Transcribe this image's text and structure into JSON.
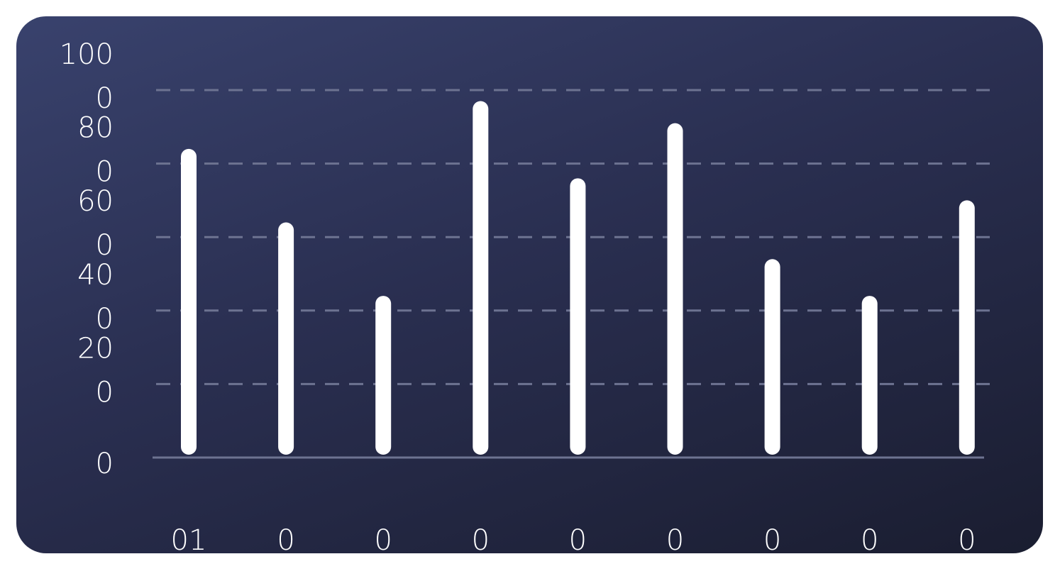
{
  "chart_data": {
    "type": "bar",
    "title": "",
    "xlabel": "",
    "ylabel": "",
    "ylim": [
      0,
      1000
    ],
    "grid": true,
    "yticks": [
      {
        "value": 1000,
        "lines": [
          "100",
          "0"
        ]
      },
      {
        "value": 800,
        "lines": [
          "80",
          "0"
        ]
      },
      {
        "value": 600,
        "lines": [
          "60",
          "0"
        ]
      },
      {
        "value": 400,
        "lines": [
          "40",
          "0"
        ]
      },
      {
        "value": 200,
        "lines": [
          "20",
          "0"
        ]
      },
      {
        "value": 0,
        "lines": [
          "0"
        ]
      }
    ],
    "categories": [
      "01",
      "0",
      "0",
      "0",
      "0",
      "0",
      "0",
      "0",
      "0"
    ],
    "values": [
      840,
      640,
      440,
      970,
      760,
      910,
      540,
      440,
      700
    ]
  },
  "colors": {
    "bar": "#ffffff",
    "grid": "#6d7391",
    "baseline": "#6d7391",
    "text": "#ffffff"
  }
}
